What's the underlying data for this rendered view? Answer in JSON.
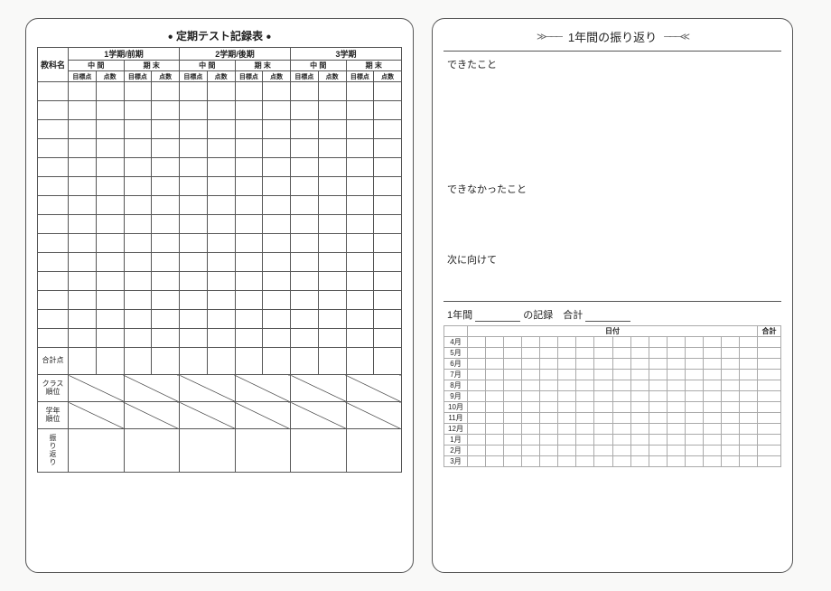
{
  "left": {
    "title": "定期テスト記録表",
    "col_subject": "教科名",
    "terms": [
      "1学期/前期",
      "2学期/後期",
      "3学期"
    ],
    "exam_types": [
      "中 間",
      "期 末"
    ],
    "sub_headers": [
      "目標点",
      "点数"
    ],
    "body_rows": 14,
    "row_total": "合計点",
    "row_class_rank": "クラス\n順位",
    "row_grade_rank": "学年\n順位",
    "row_reflection": "振り返り"
  },
  "right": {
    "title": "1年間の振り返り",
    "sec_could": "できたこと",
    "sec_couldnot": "できなかったこと",
    "sec_next": "次に向けて",
    "record_label_prefix": "1年間",
    "record_label_mid": "の記録　合計",
    "cal_date_header": "日付",
    "cal_total_header": "合計",
    "months": [
      "4月",
      "5月",
      "6月",
      "7月",
      "8月",
      "9月",
      "10月",
      "11月",
      "12月",
      "1月",
      "2月",
      "3月"
    ],
    "days_per_row": 16
  },
  "colors": {
    "border": "#555555",
    "light_border": "#aaaaaa",
    "background": "#ffffff"
  }
}
